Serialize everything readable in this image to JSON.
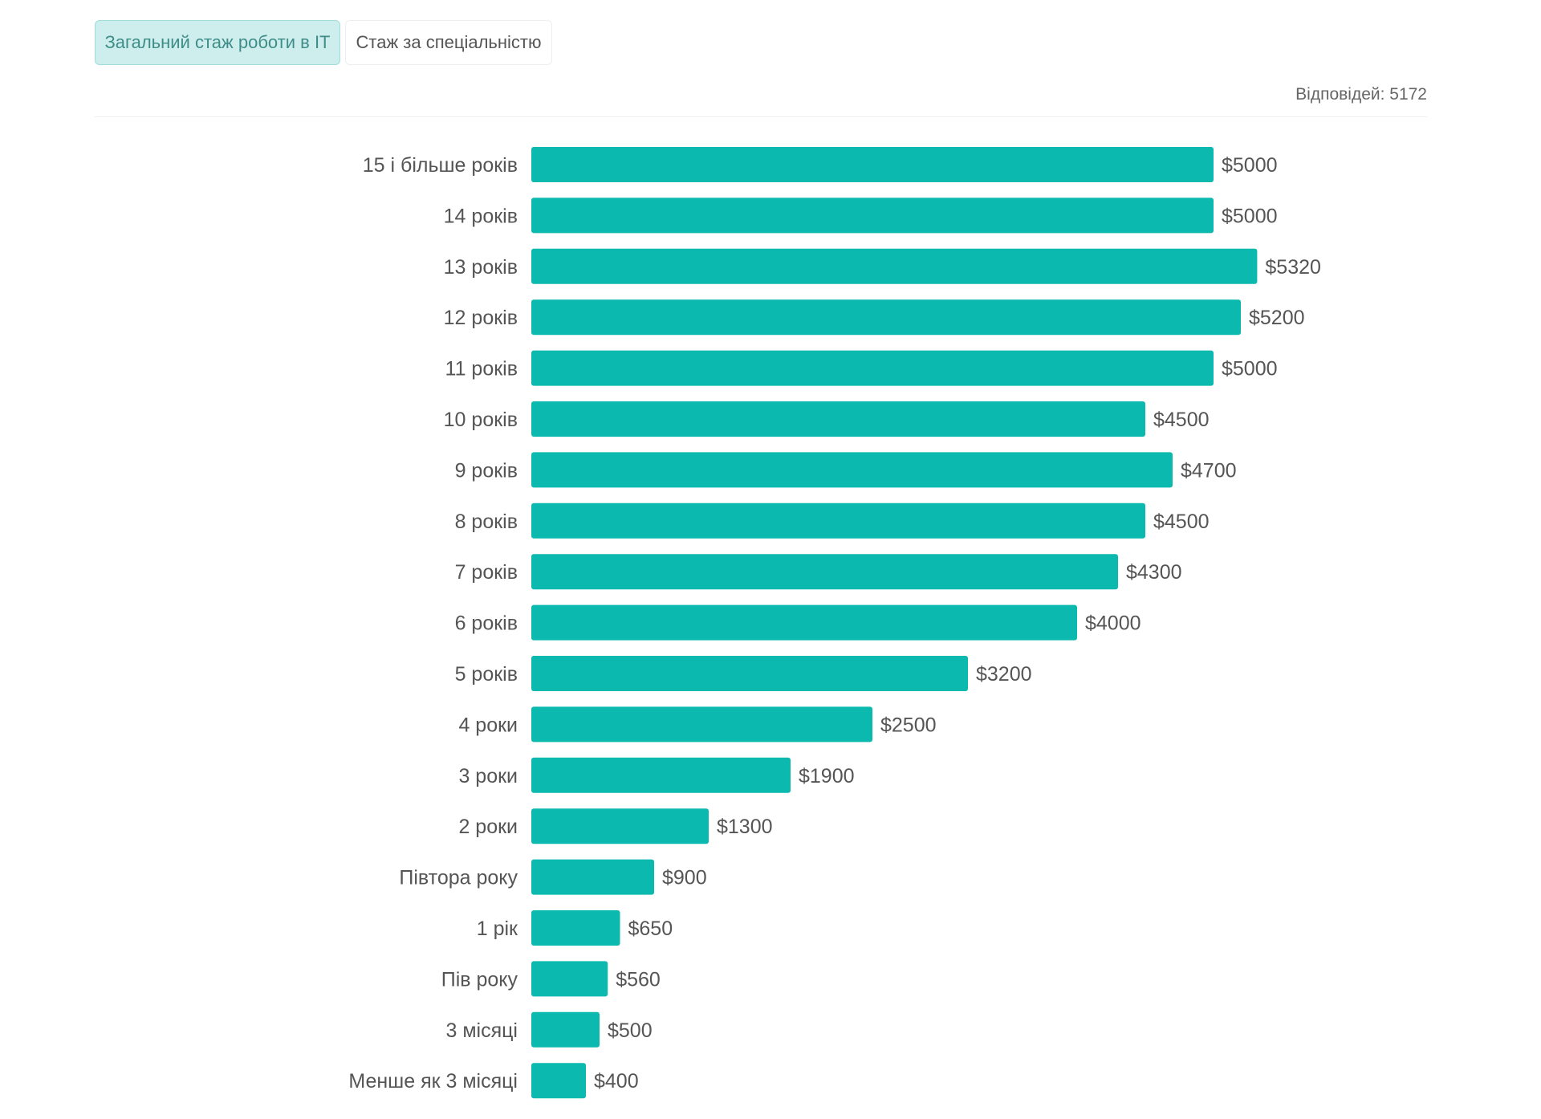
{
  "tabs": {
    "active_label": "Загальний стаж роботи в IT",
    "inactive_label": "Стаж за спеціальністю"
  },
  "responses_label": "Відповідей: 5172",
  "colors": {
    "bar": "#0bb9ae",
    "tab_active_bg": "#cdeeed",
    "text": "#555555"
  },
  "chart_data": {
    "type": "bar",
    "orientation": "horizontal",
    "categories": [
      "15 і більше років",
      "14 років",
      "13 років",
      "12 років",
      "11 років",
      "10 років",
      "9 років",
      "8 років",
      "7 років",
      "6 років",
      "5 років",
      "4 роки",
      "3 роки",
      "2 роки",
      "Півтора року",
      "1 рік",
      "Пів року",
      "3 місяці",
      "Менше як 3 місяці"
    ],
    "values": [
      5000,
      5000,
      5320,
      5200,
      5000,
      4500,
      4700,
      4500,
      4300,
      4000,
      3200,
      2500,
      1900,
      1300,
      900,
      650,
      560,
      500,
      400
    ],
    "value_labels": [
      "$5000",
      "$5000",
      "$5320",
      "$5200",
      "$5000",
      "$4500",
      "$4700",
      "$4500",
      "$4300",
      "$4000",
      "$3200",
      "$2500",
      "$1900",
      "$1300",
      "$900",
      "$650",
      "$560",
      "$500",
      "$400"
    ],
    "title": "",
    "xlabel": "",
    "ylabel": "",
    "grid": false,
    "legend": "none"
  }
}
